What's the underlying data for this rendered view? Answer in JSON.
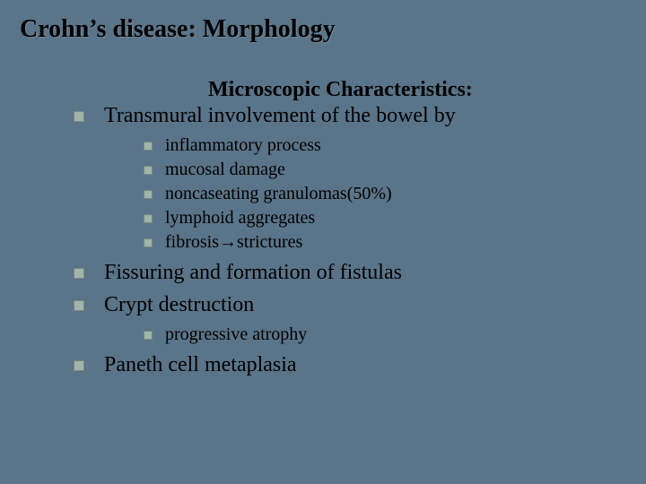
{
  "colors": {
    "background": "#5a7489",
    "text": "#000000",
    "bullet_fill": "#a0b4a8",
    "bullet_border": "rgba(0,0,0,0.25)"
  },
  "typography": {
    "title_fontsize": 28,
    "subheading_fontsize": 24,
    "lvl1_fontsize": 24,
    "lvl2_fontsize": 20,
    "font_family": "Times New Roman"
  },
  "title": "Crohn’s disease: Morphology",
  "subheading": "Microscopic Characteristics:",
  "items": [
    {
      "text": "Transmural involvement of the bowel by",
      "children": [
        {
          "text": "inflammatory process"
        },
        {
          "text": "mucosal damage"
        },
        {
          "text": "noncaseating granulomas(50%)"
        },
        {
          "text": "lymphoid aggregates"
        },
        {
          "text_pre": "fibrosis",
          "arrow": "→",
          "text_post": "strictures"
        }
      ]
    },
    {
      "text": "Fissuring and formation of fistulas"
    },
    {
      "text": "Crypt destruction",
      "children": [
        {
          "text": "progressive atrophy"
        }
      ]
    },
    {
      "text": "Paneth cell metaplasia"
    }
  ]
}
